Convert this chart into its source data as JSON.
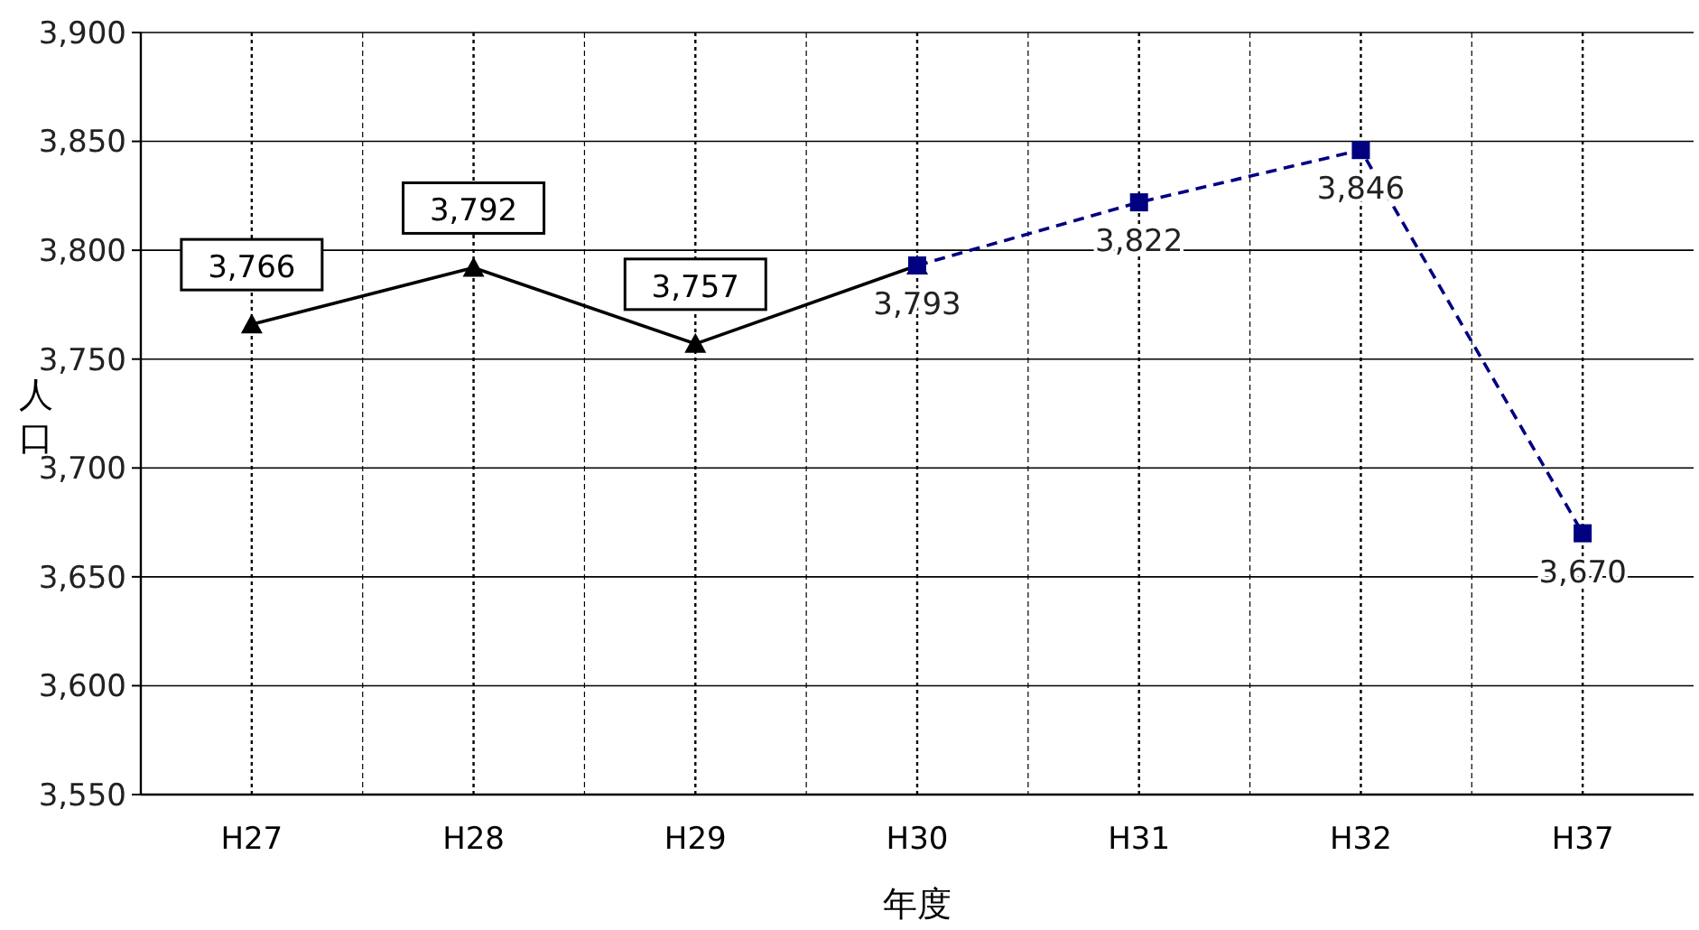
{
  "chart_data": {
    "type": "line",
    "xlabel": "年度",
    "ylabel": "人口",
    "categories": [
      "H27",
      "H28",
      "H29",
      "H30",
      "H31",
      "H32",
      "H37"
    ],
    "series": [
      {
        "color": "#000000",
        "marker": "triangle",
        "line_style": "solid",
        "values": [
          3766,
          3792,
          3757,
          3793,
          null,
          null,
          null
        ],
        "value_labels": [
          "3,766",
          "3,792",
          "3,757",
          null,
          null,
          null,
          null
        ]
      },
      {
        "color": "#000080",
        "marker": "square",
        "line_style": "dashed",
        "values": [
          null,
          null,
          null,
          3793,
          3822,
          3846,
          3670
        ],
        "value_labels": [
          null,
          null,
          null,
          "3,793",
          "3,822",
          "3,846",
          "3,670"
        ]
      }
    ],
    "ylim": [
      3550,
      3900
    ],
    "yticks": [
      {
        "value": 3550,
        "label": "3,550"
      },
      {
        "value": 3600,
        "label": "3,600"
      },
      {
        "value": 3650,
        "label": "3,650"
      },
      {
        "value": 3700,
        "label": "3,700"
      },
      {
        "value": 3750,
        "label": "3,750"
      },
      {
        "value": 3800,
        "label": "3,800"
      },
      {
        "value": 3850,
        "label": "3,850"
      },
      {
        "value": 3900,
        "label": "3,900"
      }
    ],
    "grid": true
  }
}
